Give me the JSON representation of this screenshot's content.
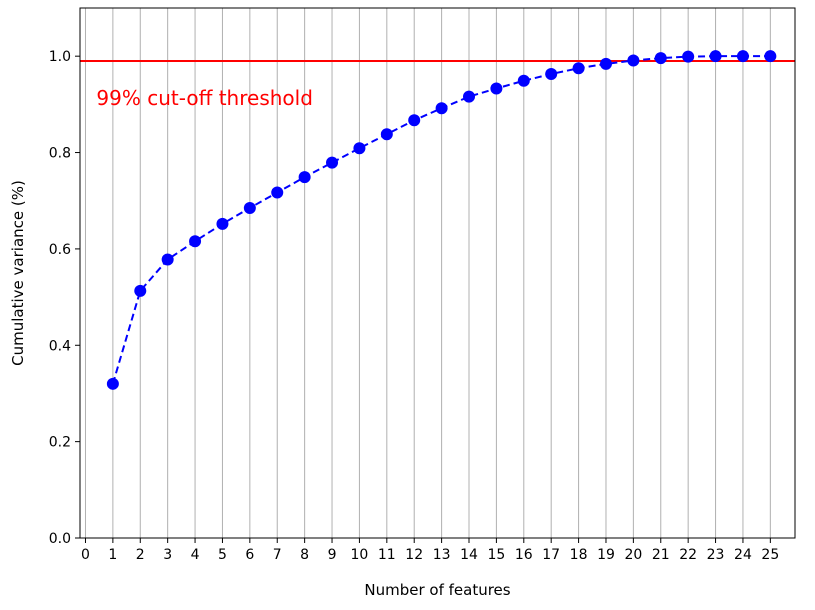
{
  "chart_data": {
    "type": "line",
    "title": "",
    "xlabel": "Number of features",
    "ylabel": "Cumulative variance (%)",
    "xlim": [
      -0.2,
      25.9
    ],
    "ylim": [
      0.0,
      1.1
    ],
    "xticks": [
      0,
      1,
      2,
      3,
      4,
      5,
      6,
      7,
      8,
      9,
      10,
      11,
      12,
      13,
      14,
      15,
      16,
      17,
      18,
      19,
      20,
      21,
      22,
      23,
      24,
      25
    ],
    "yticks": [
      0.0,
      0.2,
      0.4,
      0.6,
      0.8,
      1.0
    ],
    "ytick_labels": [
      "0.0",
      "0.2",
      "0.4",
      "0.6",
      "0.8",
      "1.0"
    ],
    "grid": "x",
    "series": [
      {
        "color": "#0000ff",
        "linestyle": "dashed",
        "marker": "circle",
        "x": [
          1,
          2,
          3,
          4,
          5,
          6,
          7,
          8,
          9,
          10,
          11,
          12,
          13,
          14,
          15,
          16,
          17,
          18,
          19,
          20,
          21,
          22,
          23,
          24,
          25
        ],
        "values": [
          0.32,
          0.513,
          0.578,
          0.616,
          0.652,
          0.685,
          0.717,
          0.749,
          0.779,
          0.809,
          0.838,
          0.867,
          0.892,
          0.916,
          0.933,
          0.949,
          0.963,
          0.975,
          0.984,
          0.991,
          0.996,
          0.999,
          1.0,
          1.0,
          1.0
        ]
      }
    ],
    "threshold": {
      "y": 0.99,
      "color": "#ff0000",
      "label": "99% cut-off threshold"
    }
  }
}
